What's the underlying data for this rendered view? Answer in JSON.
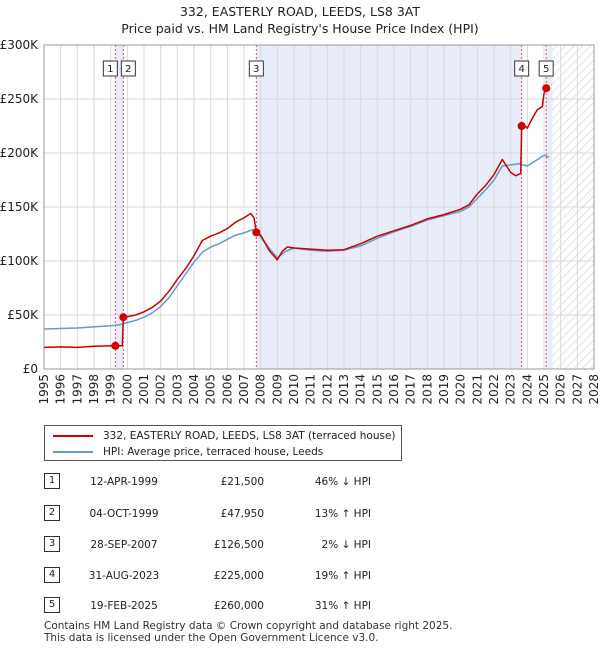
{
  "title": {
    "line1": "332, EASTERLY ROAD, LEEDS, LS8 3AT",
    "line2": "Price paid vs. HM Land Registry's House Price Index (HPI)"
  },
  "legend": {
    "property_label": "332, EASTERLY ROAD, LEEDS, LS8 3AT (terraced house)",
    "hpi_label": "HPI: Average price, terraced house, Leeds"
  },
  "colors": {
    "property": "#cc0000",
    "hpi": "#6699cc",
    "shade": "#e8ecf8",
    "grid": "#d8d8d8",
    "vline": "#dd5566"
  },
  "transactions": [
    {
      "n": "1",
      "date": "12-APR-1999",
      "price": "£21,500",
      "hpi": "46% ↓ HPI"
    },
    {
      "n": "2",
      "date": "04-OCT-1999",
      "price": "£47,950",
      "hpi": "13% ↑ HPI"
    },
    {
      "n": "3",
      "date": "28-SEP-2007",
      "price": "£126,500",
      "hpi": "2% ↓ HPI"
    },
    {
      "n": "4",
      "date": "31-AUG-2023",
      "price": "£225,000",
      "hpi": "19% ↑ HPI"
    },
    {
      "n": "5",
      "date": "19-FEB-2025",
      "price": "£260,000",
      "hpi": "31% ↑ HPI"
    }
  ],
  "footer": {
    "line1": "Contains HM Land Registry data © Crown copyright and database right 2025.",
    "line2": "This data is licensed under the Open Government Licence v3.0."
  },
  "chart_data": {
    "type": "line",
    "title": "332, EASTERLY ROAD, LEEDS, LS8 3AT — Price paid vs. HM Land Registry's House Price Index (HPI)",
    "xlabel": "",
    "ylabel": "",
    "xlim": [
      1995,
      2028
    ],
    "ylim": [
      0,
      300000
    ],
    "x_ticks": [
      1995,
      1996,
      1997,
      1998,
      1999,
      2000,
      2001,
      2002,
      2003,
      2004,
      2005,
      2006,
      2007,
      2008,
      2009,
      2010,
      2011,
      2012,
      2013,
      2014,
      2015,
      2016,
      2017,
      2018,
      2019,
      2020,
      2021,
      2022,
      2023,
      2024,
      2025,
      2026,
      2027,
      2028
    ],
    "y_ticks": [
      0,
      50000,
      100000,
      150000,
      200000,
      250000,
      300000
    ],
    "y_tick_labels": [
      "£0",
      "£50K",
      "£100K",
      "£150K",
      "£200K",
      "£250K",
      "£300K"
    ],
    "shaded_periods": [
      [
        1999.28,
        1999.76
      ],
      [
        2007.74,
        2023.66
      ],
      [
        2025.13,
        2025.5
      ]
    ],
    "hatched_after": 2025.5,
    "sale_markers": [
      {
        "label": "1",
        "x": 1999.28,
        "y": 21500
      },
      {
        "label": "2",
        "x": 1999.76,
        "y": 47950
      },
      {
        "label": "3",
        "x": 2007.74,
        "y": 126500
      },
      {
        "label": "4",
        "x": 2023.66,
        "y": 225000
      },
      {
        "label": "5",
        "x": 2025.13,
        "y": 260000
      }
    ],
    "series": [
      {
        "name": "332, EASTERLY ROAD, LEEDS, LS8 3AT (terraced house)",
        "color": "#cc0000",
        "x": [
          1995,
          1996,
          1997,
          1998,
          1999.2,
          1999.28,
          1999.5,
          1999.7,
          1999.76,
          2000,
          2000.5,
          2001,
          2001.5,
          2002,
          2002.5,
          2003,
          2003.5,
          2004,
          2004.5,
          2005,
          2005.5,
          2006,
          2006.5,
          2007,
          2007.4,
          2007.6,
          2007.74,
          2008,
          2008.5,
          2009,
          2009.3,
          2009.6,
          2010,
          2011,
          2012,
          2013,
          2014,
          2015,
          2016,
          2017,
          2018,
          2019,
          2020,
          2020.5,
          2021,
          2021.5,
          2022,
          2022.5,
          2023,
          2023.3,
          2023.6,
          2023.66,
          2023.8,
          2024,
          2024.3,
          2024.6,
          2024.9,
          2025,
          2025.13,
          2025.3
        ],
        "y": [
          20000,
          20500,
          20000,
          21000,
          21500,
          21500,
          21500,
          21500,
          47950,
          48500,
          50000,
          53000,
          57000,
          63000,
          72000,
          83000,
          93000,
          105000,
          119000,
          123000,
          126000,
          130000,
          136000,
          140000,
          144000,
          140000,
          126500,
          124000,
          110000,
          101000,
          109000,
          113000,
          112000,
          111000,
          110000,
          110500,
          116000,
          123000,
          128000,
          133000,
          139000,
          143000,
          148000,
          152000,
          162000,
          170000,
          180000,
          194000,
          182000,
          179000,
          181000,
          225000,
          226000,
          223000,
          232000,
          240000,
          243000,
          255000,
          260000,
          262000
        ]
      },
      {
        "name": "HPI: Average price, terraced house, Leeds",
        "color": "#6699cc",
        "x": [
          1995,
          1996,
          1997,
          1998,
          1999,
          1999.5,
          2000,
          2000.5,
          2001,
          2001.5,
          2002,
          2002.5,
          2003,
          2003.5,
          2004,
          2004.5,
          2005,
          2005.5,
          2006,
          2006.5,
          2007,
          2007.5,
          2007.8,
          2008,
          2008.5,
          2009,
          2009.5,
          2010,
          2011,
          2012,
          2013,
          2014,
          2015,
          2016,
          2017,
          2018,
          2019,
          2020,
          2020.5,
          2021,
          2021.5,
          2022,
          2022.5,
          2023,
          2023.5,
          2024,
          2024.5,
          2025,
          2025.3
        ],
        "y": [
          37000,
          37500,
          38000,
          39000,
          40000,
          41000,
          43000,
          45000,
          48000,
          52000,
          58000,
          66000,
          77000,
          88000,
          99000,
          108000,
          113000,
          116000,
          120000,
          124000,
          126000,
          129000,
          127000,
          122000,
          112000,
          103000,
          109000,
          112000,
          110000,
          109000,
          110000,
          114000,
          121000,
          127000,
          132000,
          138000,
          142000,
          146000,
          150000,
          158000,
          166000,
          175000,
          188000,
          189000,
          190000,
          188000,
          193000,
          198000,
          196000
        ]
      }
    ]
  }
}
